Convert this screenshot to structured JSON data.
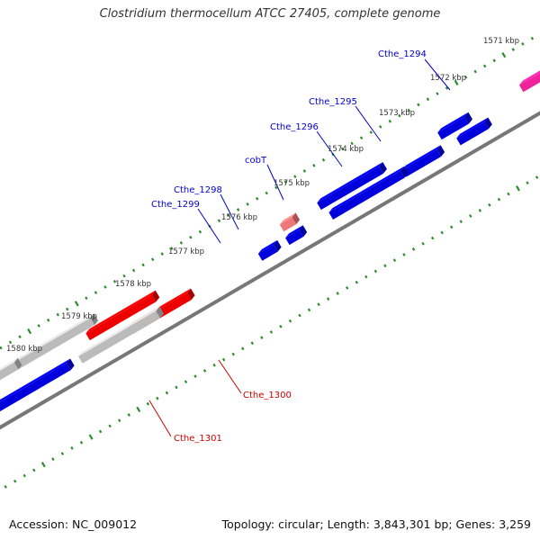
{
  "title": "Clostridium thermocellum ATCC 27405, complete genome",
  "footer": {
    "accession": "Accession: NC_009012",
    "summary": "Topology: circular; Length: 3,843,301 bp; Genes: 3,259"
  },
  "colors": {
    "tick": "#2e8b2e",
    "backbone": "#777777",
    "blue": "#0000dd",
    "green": "#22bb22",
    "magenta": "#ee2299",
    "pink": "#ee7777",
    "red": "#ee0000",
    "gray": "#bbbbbb",
    "label_blue": "#0000cc",
    "label_red": "#cc0000"
  },
  "kbp_labels": [
    "1571 kbp",
    "1572 kbp",
    "1573 kbp",
    "1574 kbp",
    "1575 kbp",
    "1576 kbp",
    "1577 kbp",
    "1578 kbp",
    "1579 kbp",
    "1580 kbp"
  ],
  "gene_labels": [
    {
      "id": "cthe-1294",
      "text": "Cthe_1294",
      "color": "blue"
    },
    {
      "id": "cthe-1295",
      "text": "Cthe_1295",
      "color": "blue"
    },
    {
      "id": "cthe-1296",
      "text": "Cthe_1296",
      "color": "blue"
    },
    {
      "id": "cobt",
      "text": "cobT",
      "color": "blue"
    },
    {
      "id": "cthe-1298",
      "text": "Cthe_1298",
      "color": "blue"
    },
    {
      "id": "cthe-1299",
      "text": "Cthe_1299",
      "color": "blue"
    },
    {
      "id": "cthe-1300",
      "text": "Cthe_1300",
      "color": "red"
    },
    {
      "id": "cthe-1301",
      "text": "Cthe_1301",
      "color": "red"
    }
  ]
}
